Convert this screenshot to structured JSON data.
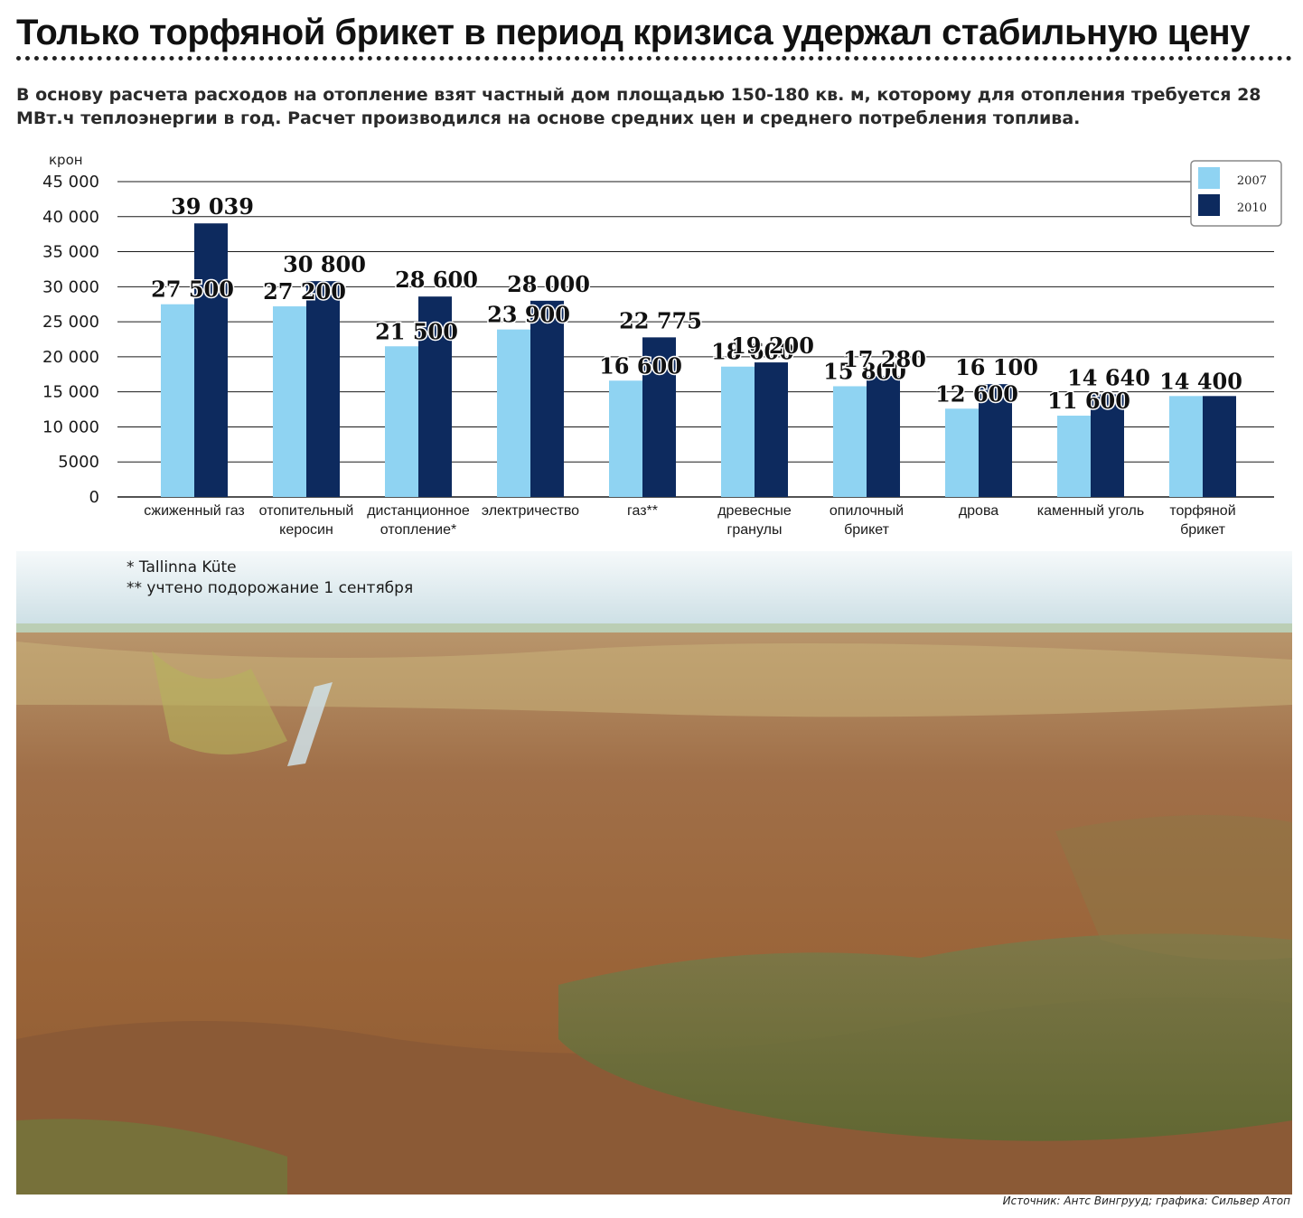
{
  "title": "Только торфяной брикет в период кризиса удержал стабильную цену",
  "subtitle": "В основу расчета расходов на отопление взят частный дом площадью 150-180 кв. м, которому для отопления требуется 28 МВт.ч теплоэнергии в год. Расчет производился на основе средних цен и среднего потребления топлива.",
  "footnotes": [
    "* Tallinna Küte",
    "** учтено подорожание 1 сентября"
  ],
  "source": "Источник: Антс Вингрууд; графика: Сильвер Атоп",
  "colors": {
    "series2007": "#8fd3f2",
    "series2010": "#0d2a5e",
    "grid": "#1a1a1a"
  },
  "chart_data": {
    "type": "bar",
    "ylabel": "крон",
    "ylim": [
      0,
      45000
    ],
    "yticks": [
      {
        "v": 0,
        "label": "0"
      },
      {
        "v": 5000,
        "label": "5000"
      },
      {
        "v": 10000,
        "label": "10 000"
      },
      {
        "v": 15000,
        "label": "15 000"
      },
      {
        "v": 20000,
        "label": "20 000"
      },
      {
        "v": 25000,
        "label": "25 000"
      },
      {
        "v": 30000,
        "label": "30 000"
      },
      {
        "v": 35000,
        "label": "35 000"
      },
      {
        "v": 40000,
        "label": "40 000"
      },
      {
        "v": 45000,
        "label": "45 000"
      }
    ],
    "grid": true,
    "legend": "top-right",
    "categories": [
      [
        "сжиженный газ"
      ],
      [
        "отопительный",
        "керосин"
      ],
      [
        "дистанционное",
        "отопление*"
      ],
      [
        "электричество"
      ],
      [
        "газ**"
      ],
      [
        "древесные",
        "гранулы"
      ],
      [
        "опилочный",
        "брикет"
      ],
      [
        "дрова"
      ],
      [
        "каменный уголь"
      ],
      [
        "торфяной",
        "брикет"
      ]
    ],
    "series": [
      {
        "name": "2007",
        "values": [
          27500,
          27200,
          21500,
          23900,
          16600,
          18600,
          15800,
          12600,
          11600,
          14400
        ],
        "labels": [
          "27 500",
          "27 200",
          "21 500",
          "23 900",
          "16 600",
          "18 600",
          "15 800",
          "12 600",
          "11 600",
          "14 400"
        ]
      },
      {
        "name": "2010",
        "values": [
          39039,
          30800,
          28600,
          28000,
          22775,
          19200,
          17280,
          16100,
          14640,
          14400
        ],
        "labels": [
          "39 039",
          "30 800",
          "28 600",
          "28 000",
          "22 775",
          "19 200",
          "17 280",
          "16 100",
          "14 640",
          ""
        ]
      }
    ]
  }
}
